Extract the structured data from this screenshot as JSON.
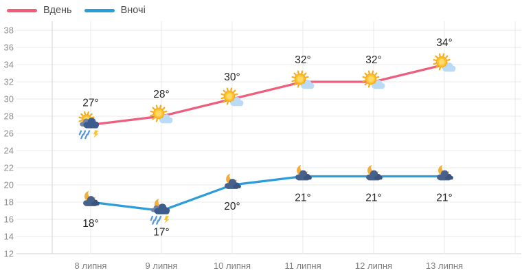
{
  "chart_data": {
    "type": "line",
    "title": "",
    "categories": [
      "8 липня",
      "9 липня",
      "10 липня",
      "11 липня",
      "12 липня",
      "13 липня"
    ],
    "series": [
      {
        "name": "Вдень",
        "color": "#ED5E7D",
        "values": [
          27,
          28,
          30,
          32,
          32,
          34
        ],
        "point_labels": [
          "27°",
          "28°",
          "30°",
          "32°",
          "32°",
          "34°"
        ],
        "icons": [
          "sun-rain-lightning-cloud-icon",
          "sun-cloud-icon",
          "sun-cloud-icon",
          "sun-cloud-icon",
          "sun-cloud-icon",
          "sun-cloud-icon"
        ],
        "label_position": "above"
      },
      {
        "name": "Вночі",
        "color": "#2D9CDB",
        "values": [
          18,
          17,
          20,
          21,
          21,
          21
        ],
        "point_labels": [
          "18°",
          "17°",
          "20°",
          "21°",
          "21°",
          "21°"
        ],
        "icons": [
          "moon-cloud-icon",
          "moon-rain-lightning-cloud-icon",
          "moon-cloud-icon",
          "moon-cloud-icon",
          "moon-cloud-icon",
          "moon-cloud-icon"
        ],
        "label_position": "below"
      }
    ],
    "xlabel": "",
    "ylabel": "",
    "ylim": [
      12,
      38
    ],
    "y_ticks": [
      38,
      36,
      34,
      32,
      30,
      28,
      26,
      24,
      22,
      20,
      18,
      16,
      14,
      12
    ],
    "grid": true,
    "legend_position": "top-left",
    "colors": {
      "grid": "#e9e9e9",
      "axis": "#d2d2d2",
      "tick_label": "#8f8f8f",
      "category_label": "#7e7e7e",
      "point_label": "#252525",
      "sun": "#FFC42E",
      "sun_ray": "#F6AC1F",
      "moon": "#F2AE3C",
      "cloud_light": "#BBDAF5",
      "cloud_dark": "#3D5C8E",
      "rain": "#5598DF",
      "lightning": "#FFC12C"
    }
  }
}
